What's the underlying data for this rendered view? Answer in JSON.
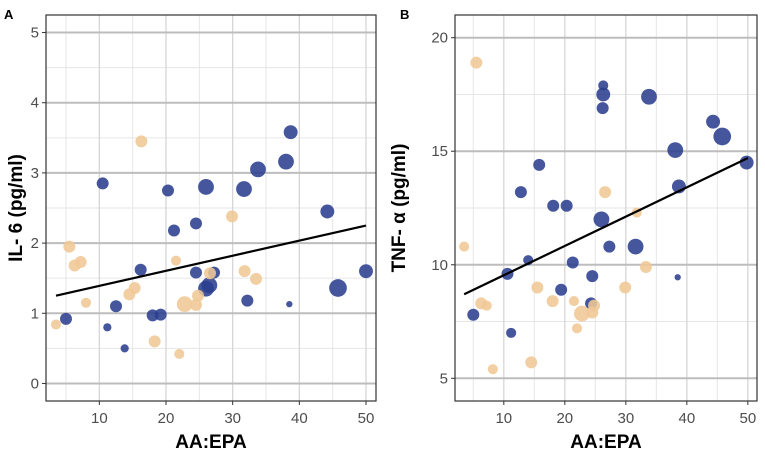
{
  "colors": {
    "series_high": "#2b3f8e",
    "series_low": "#f0c896",
    "trend_line": "#000000",
    "grid_major": "#bdbdbd",
    "grid_minor": "#e6e6e6",
    "panel_border": "#333333"
  },
  "chart_data": [
    {
      "type": "scatter",
      "panel_label": "A",
      "title": "",
      "xlabel": "AA:EPA",
      "ylabel": "IL- 6 (pg/ml)",
      "xlim": [
        2,
        51.5
      ],
      "ylim": [
        -0.25,
        5.25
      ],
      "xticks": [
        10,
        20,
        30,
        40,
        50
      ],
      "yticks": [
        0,
        1,
        2,
        3,
        4,
        5
      ],
      "grid": true,
      "trend_line": {
        "x": [
          3.5,
          50
        ],
        "y": [
          1.25,
          2.25
        ]
      },
      "series": [
        {
          "name": "blue",
          "color": "#2b3f8e",
          "points": [
            {
              "x": 5,
              "y": 0.92,
              "size": 2
            },
            {
              "x": 10.5,
              "y": 2.85,
              "size": 2
            },
            {
              "x": 11.2,
              "y": 0.8,
              "size": 1
            },
            {
              "x": 12.5,
              "y": 1.1,
              "size": 2
            },
            {
              "x": 13.8,
              "y": 0.5,
              "size": 1
            },
            {
              "x": 16.2,
              "y": 1.62,
              "size": 2
            },
            {
              "x": 18,
              "y": 0.97,
              "size": 2
            },
            {
              "x": 19.2,
              "y": 0.98,
              "size": 2
            },
            {
              "x": 20.3,
              "y": 2.75,
              "size": 2
            },
            {
              "x": 21.2,
              "y": 2.18,
              "size": 2
            },
            {
              "x": 24.5,
              "y": 2.28,
              "size": 2
            },
            {
              "x": 24.5,
              "y": 1.58,
              "size": 2
            },
            {
              "x": 26,
              "y": 2.8,
              "size": 3
            },
            {
              "x": 26,
              "y": 1.35,
              "size": 3
            },
            {
              "x": 26.5,
              "y": 1.4,
              "size": 3
            },
            {
              "x": 27.2,
              "y": 1.58,
              "size": 2
            },
            {
              "x": 31.7,
              "y": 2.77,
              "size": 3
            },
            {
              "x": 32.2,
              "y": 1.18,
              "size": 2
            },
            {
              "x": 33.8,
              "y": 3.05,
              "size": 3
            },
            {
              "x": 38,
              "y": 3.16,
              "size": 3
            },
            {
              "x": 38.7,
              "y": 3.58,
              "size": 2.5
            },
            {
              "x": 38.5,
              "y": 1.13,
              "size": 0.5
            },
            {
              "x": 44.2,
              "y": 2.45,
              "size": 2.5
            },
            {
              "x": 45.8,
              "y": 1.36,
              "size": 3.5
            },
            {
              "x": 50,
              "y": 1.6,
              "size": 2.5
            }
          ]
        },
        {
          "name": "tan",
          "color": "#f0c896",
          "points": [
            {
              "x": 3.5,
              "y": 0.84,
              "size": 1.5
            },
            {
              "x": 5.5,
              "y": 1.95,
              "size": 2
            },
            {
              "x": 6.3,
              "y": 1.68,
              "size": 2
            },
            {
              "x": 7.2,
              "y": 1.73,
              "size": 2
            },
            {
              "x": 8,
              "y": 1.15,
              "size": 1.5
            },
            {
              "x": 14.5,
              "y": 1.27,
              "size": 2
            },
            {
              "x": 15.3,
              "y": 1.36,
              "size": 2
            },
            {
              "x": 16.3,
              "y": 3.45,
              "size": 2
            },
            {
              "x": 18.3,
              "y": 0.6,
              "size": 2
            },
            {
              "x": 21.5,
              "y": 1.75,
              "size": 1.5
            },
            {
              "x": 22,
              "y": 0.42,
              "size": 1.5
            },
            {
              "x": 22.8,
              "y": 1.13,
              "size": 3
            },
            {
              "x": 24.5,
              "y": 1.12,
              "size": 2
            },
            {
              "x": 24.8,
              "y": 1.25,
              "size": 2
            },
            {
              "x": 26.6,
              "y": 1.57,
              "size": 2
            },
            {
              "x": 29.9,
              "y": 2.38,
              "size": 2
            },
            {
              "x": 31.8,
              "y": 1.6,
              "size": 2
            },
            {
              "x": 33.5,
              "y": 1.49,
              "size": 2
            }
          ]
        }
      ]
    },
    {
      "type": "scatter",
      "panel_label": "B",
      "title": "",
      "xlabel": "AA:EPA",
      "ylabel": "TNF- α (pg/ml)",
      "xlim": [
        2,
        51.5
      ],
      "ylim": [
        4,
        21
      ],
      "xticks": [
        10,
        20,
        30,
        40,
        50
      ],
      "yticks": [
        5,
        10,
        15,
        20
      ],
      "grid": true,
      "trend_line": {
        "x": [
          3.5,
          50
        ],
        "y": [
          8.7,
          14.7
        ]
      },
      "series": [
        {
          "name": "blue",
          "color": "#2b3f8e",
          "points": [
            {
              "x": 5,
              "y": 7.8,
              "size": 2
            },
            {
              "x": 10.6,
              "y": 9.6,
              "size": 2
            },
            {
              "x": 11.2,
              "y": 7.0,
              "size": 1.5
            },
            {
              "x": 12.8,
              "y": 13.2,
              "size": 2
            },
            {
              "x": 14,
              "y": 10.2,
              "size": 1.5
            },
            {
              "x": 15.8,
              "y": 14.4,
              "size": 2
            },
            {
              "x": 18.1,
              "y": 12.6,
              "size": 2
            },
            {
              "x": 19.4,
              "y": 8.9,
              "size": 2
            },
            {
              "x": 20.3,
              "y": 12.6,
              "size": 2
            },
            {
              "x": 21.3,
              "y": 10.1,
              "size": 2
            },
            {
              "x": 24.5,
              "y": 9.5,
              "size": 2
            },
            {
              "x": 24.3,
              "y": 8.3,
              "size": 2
            },
            {
              "x": 26,
              "y": 12.0,
              "size": 3
            },
            {
              "x": 26.2,
              "y": 16.9,
              "size": 2
            },
            {
              "x": 26.3,
              "y": 17.5,
              "size": 2.5
            },
            {
              "x": 26.3,
              "y": 17.9,
              "size": 1.5
            },
            {
              "x": 27.3,
              "y": 10.8,
              "size": 2
            },
            {
              "x": 31.6,
              "y": 10.8,
              "size": 3
            },
            {
              "x": 33.8,
              "y": 17.4,
              "size": 3
            },
            {
              "x": 38.1,
              "y": 15.05,
              "size": 3
            },
            {
              "x": 38.7,
              "y": 13.45,
              "size": 2.5
            },
            {
              "x": 38.5,
              "y": 9.45,
              "size": 0.5
            },
            {
              "x": 44.3,
              "y": 16.3,
              "size": 2.5
            },
            {
              "x": 45.8,
              "y": 15.65,
              "size": 3.5
            },
            {
              "x": 49.8,
              "y": 14.5,
              "size": 2.5
            }
          ]
        },
        {
          "name": "tan",
          "color": "#f0c896",
          "points": [
            {
              "x": 3.5,
              "y": 10.8,
              "size": 1.5
            },
            {
              "x": 5.5,
              "y": 18.9,
              "size": 2
            },
            {
              "x": 6.3,
              "y": 8.3,
              "size": 2
            },
            {
              "x": 7.2,
              "y": 8.2,
              "size": 1.5
            },
            {
              "x": 8.2,
              "y": 5.4,
              "size": 1.5
            },
            {
              "x": 14.5,
              "y": 5.7,
              "size": 2
            },
            {
              "x": 15.5,
              "y": 9.0,
              "size": 2
            },
            {
              "x": 18,
              "y": 8.4,
              "size": 2
            },
            {
              "x": 21.5,
              "y": 8.4,
              "size": 1.5
            },
            {
              "x": 22,
              "y": 7.2,
              "size": 1.5
            },
            {
              "x": 22.8,
              "y": 7.85,
              "size": 3
            },
            {
              "x": 24.5,
              "y": 7.9,
              "size": 2
            },
            {
              "x": 24.8,
              "y": 8.2,
              "size": 2
            },
            {
              "x": 26.6,
              "y": 13.2,
              "size": 2
            },
            {
              "x": 29.9,
              "y": 9.0,
              "size": 2
            },
            {
              "x": 31.8,
              "y": 12.3,
              "size": 1.5
            },
            {
              "x": 33.3,
              "y": 9.9,
              "size": 2
            }
          ]
        }
      ]
    }
  ]
}
